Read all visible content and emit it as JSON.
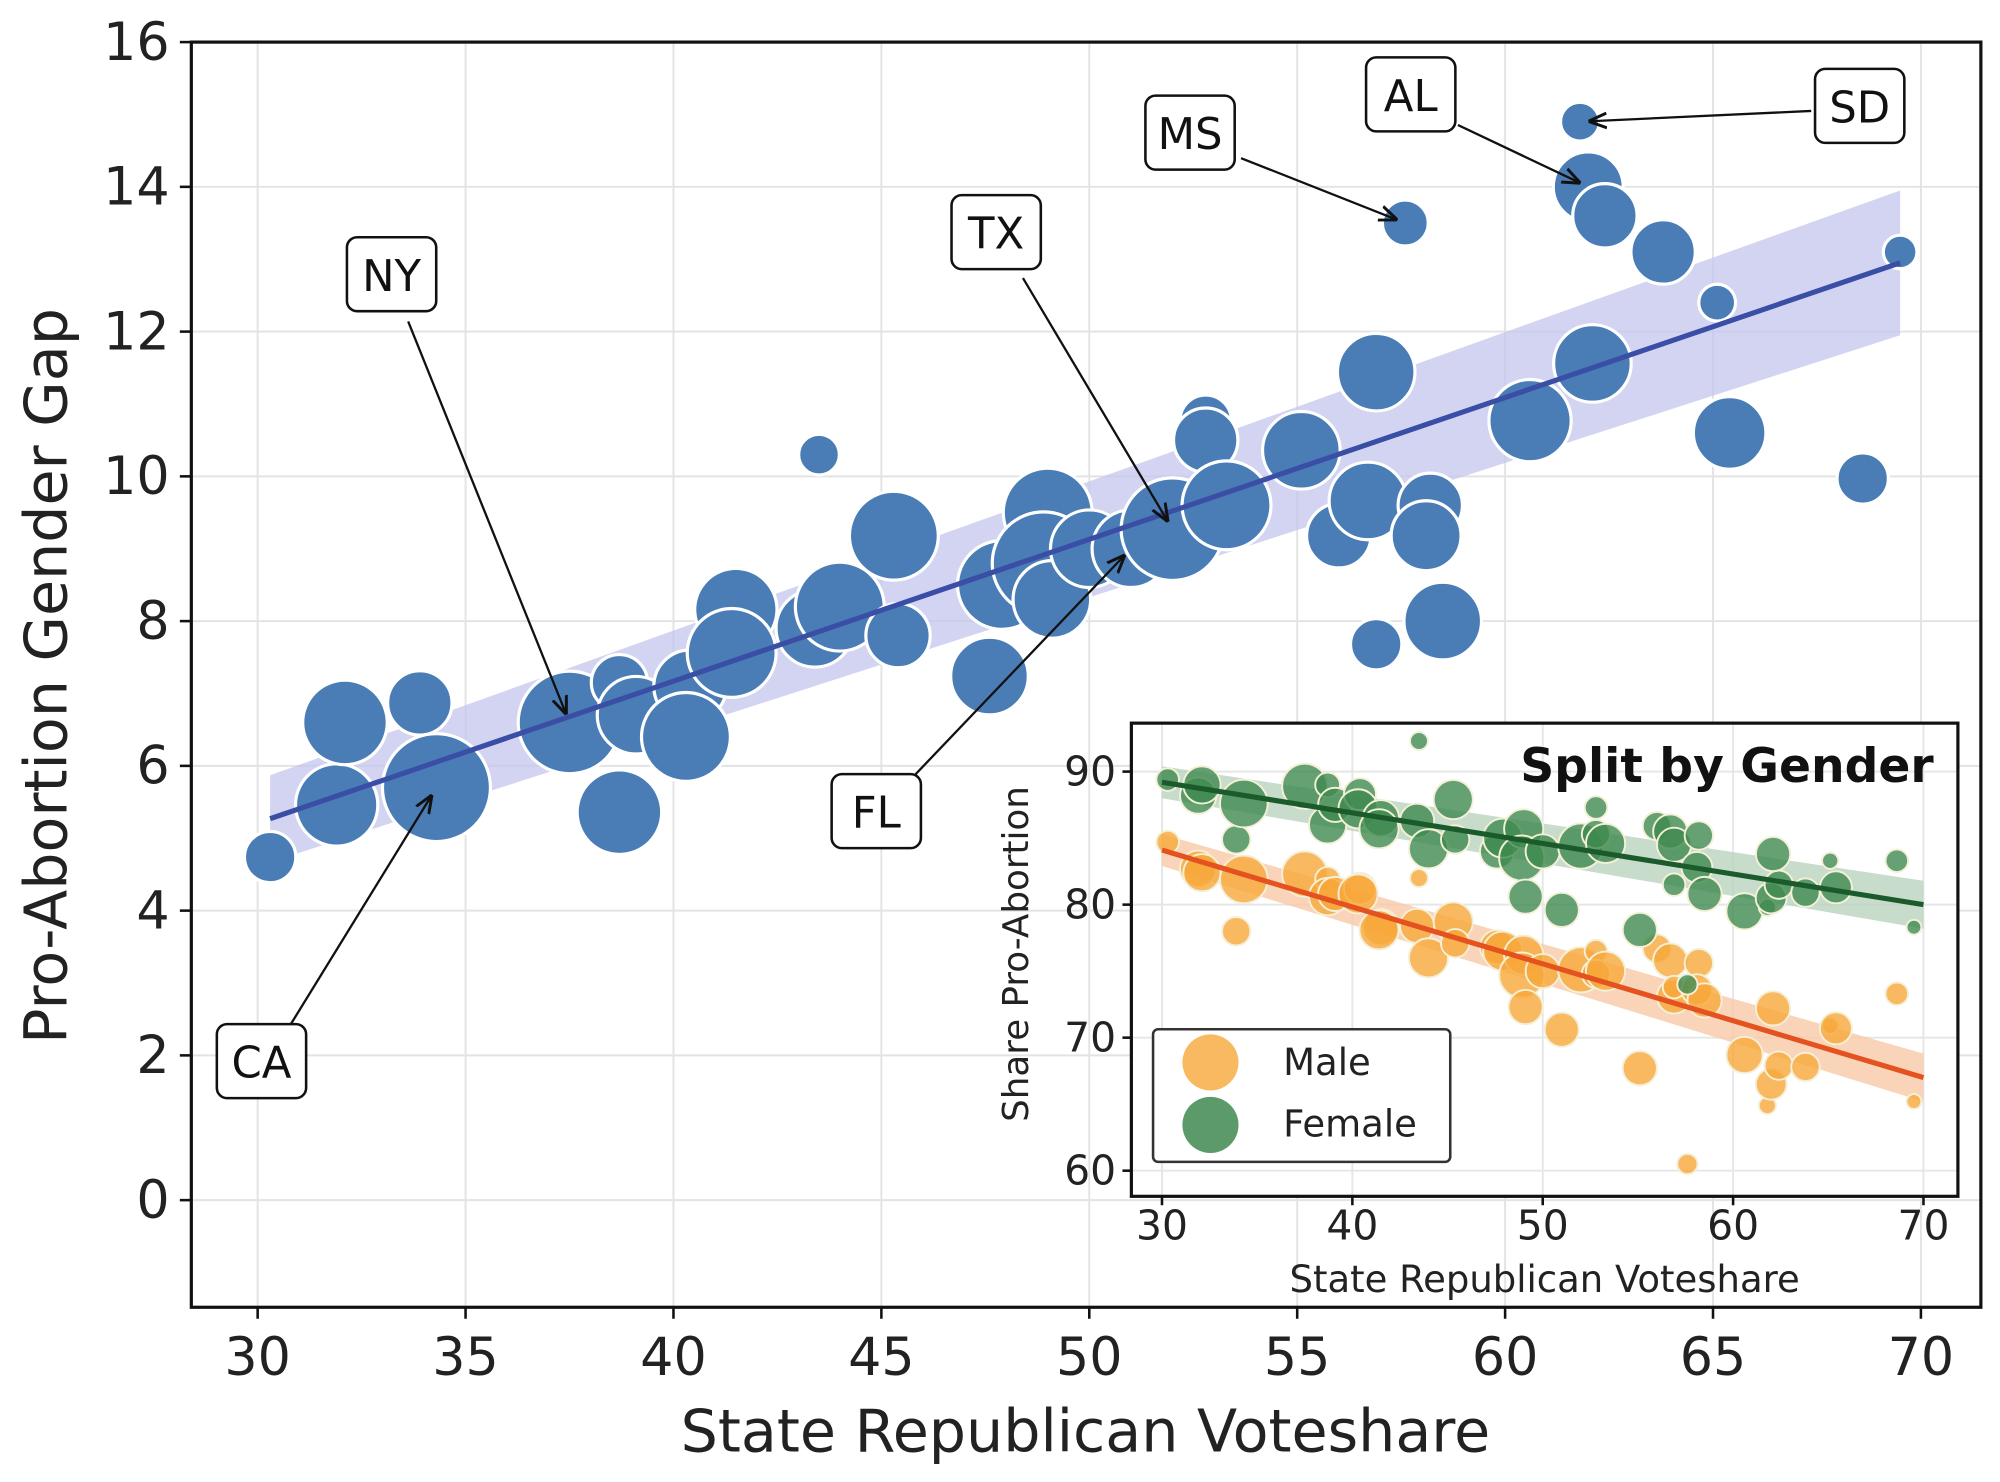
{
  "colors": {
    "main_points": "#4a7db5",
    "main_line": "#3b4ea6",
    "main_band": "#c3c6ee",
    "female": "#3f8a4f",
    "female_line": "#1b5a2b",
    "male": "#f8a73a",
    "male_line": "#e3521f"
  },
  "chart_data": [
    {
      "type": "scatter",
      "title": "",
      "xlabel": "State Republican Voteshare",
      "ylabel": "Pro-Abortion Gender Gap",
      "xlim": [
        28.5,
        71.5
      ],
      "ylim": [
        -1.5,
        16.0
      ],
      "xticks": [
        "30",
        "35",
        "40",
        "45",
        "50",
        "55",
        "60",
        "65",
        "70"
      ],
      "yticks": [
        "0",
        "2",
        "4",
        "6",
        "8",
        "10",
        "12",
        "14",
        "16"
      ],
      "grid": true,
      "regression": {
        "x": [
          30.3,
          69.5
        ],
        "y": [
          5.27,
          12.95
        ],
        "ci_halfwidth": [
          0.6,
          1.0
        ]
      },
      "points": [
        {
          "x": 30.3,
          "y": 4.74,
          "w": 0.35
        },
        {
          "x": 31.9,
          "y": 5.46,
          "w": 0.9
        },
        {
          "x": 32.1,
          "y": 6.6,
          "w": 0.95
        },
        {
          "x": 33.9,
          "y": 6.87,
          "w": 0.55
        },
        {
          "x": 34.3,
          "y": 5.7,
          "w": 1.55
        },
        {
          "x": 37.5,
          "y": 6.6,
          "w": 1.4
        },
        {
          "x": 38.7,
          "y": 7.15,
          "w": 0.42
        },
        {
          "x": 38.7,
          "y": 5.36,
          "w": 0.95
        },
        {
          "x": 39.1,
          "y": 6.7,
          "w": 0.8
        },
        {
          "x": 40.4,
          "y": 7.1,
          "w": 0.7
        },
        {
          "x": 40.3,
          "y": 6.4,
          "w": 1.05
        },
        {
          "x": 41.5,
          "y": 8.16,
          "w": 0.9
        },
        {
          "x": 41.4,
          "y": 7.56,
          "w": 1.05
        },
        {
          "x": 43.5,
          "y": 10.3,
          "w": 0.22
        },
        {
          "x": 43.4,
          "y": 7.9,
          "w": 0.8
        },
        {
          "x": 44.0,
          "y": 8.2,
          "w": 1.05
        },
        {
          "x": 45.3,
          "y": 9.18,
          "w": 1.05
        },
        {
          "x": 45.4,
          "y": 7.8,
          "w": 0.55
        },
        {
          "x": 47.6,
          "y": 7.24,
          "w": 0.8
        },
        {
          "x": 47.9,
          "y": 8.5,
          "w": 1.05
        },
        {
          "x": 49.0,
          "y": 9.5,
          "w": 1.05
        },
        {
          "x": 48.9,
          "y": 8.8,
          "w": 1.4
        },
        {
          "x": 49.1,
          "y": 8.3,
          "w": 0.8
        },
        {
          "x": 50.0,
          "y": 9.0,
          "w": 0.8
        },
        {
          "x": 51.0,
          "y": 9.0,
          "w": 0.8
        },
        {
          "x": 52.0,
          "y": 9.27,
          "w": 1.4
        },
        {
          "x": 52.8,
          "y": 10.77,
          "w": 0.35
        },
        {
          "x": 52.8,
          "y": 10.5,
          "w": 0.55
        },
        {
          "x": 53.3,
          "y": 9.6,
          "w": 1.05
        },
        {
          "x": 55.1,
          "y": 10.36,
          "w": 0.8
        },
        {
          "x": 56.0,
          "y": 9.18,
          "w": 0.55
        },
        {
          "x": 56.7,
          "y": 9.66,
          "w": 0.8
        },
        {
          "x": 56.9,
          "y": 11.44,
          "w": 0.8
        },
        {
          "x": 56.9,
          "y": 7.68,
          "w": 0.35
        },
        {
          "x": 57.6,
          "y": 13.5,
          "w": 0.28
        },
        {
          "x": 58.2,
          "y": 9.6,
          "w": 0.55
        },
        {
          "x": 58.1,
          "y": 9.18,
          "w": 0.65
        },
        {
          "x": 58.5,
          "y": 8.0,
          "w": 0.8
        },
        {
          "x": 60.6,
          "y": 10.77,
          "w": 0.9
        },
        {
          "x": 61.8,
          "y": 14.9,
          "w": 0.2
        },
        {
          "x": 62.0,
          "y": 14.0,
          "w": 0.65
        },
        {
          "x": 62.4,
          "y": 13.6,
          "w": 0.55
        },
        {
          "x": 62.1,
          "y": 11.56,
          "w": 0.8
        },
        {
          "x": 63.8,
          "y": 13.1,
          "w": 0.55
        },
        {
          "x": 65.1,
          "y": 12.4,
          "w": 0.18
        },
        {
          "x": 65.4,
          "y": 10.6,
          "w": 0.7
        },
        {
          "x": 68.6,
          "y": 9.97,
          "w": 0.35
        },
        {
          "x": 69.5,
          "y": 13.1,
          "w": 0.15
        }
      ],
      "annotations": [
        {
          "label": "CA",
          "x": 34.3,
          "y": 5.7
        },
        {
          "label": "NY",
          "x": 37.5,
          "y": 6.6
        },
        {
          "label": "TX",
          "x": 52.0,
          "y": 9.27
        },
        {
          "label": "FL",
          "x": 51.0,
          "y": 9.0
        },
        {
          "label": "MS",
          "x": 57.6,
          "y": 13.5
        },
        {
          "label": "AL",
          "x": 62.0,
          "y": 14.0
        },
        {
          "label": "SD",
          "x": 61.8,
          "y": 14.9
        }
      ]
    },
    {
      "type": "scatter",
      "title": "Split by Gender",
      "xlabel": "State Republican Voteshare",
      "ylabel": "Share Pro-Abortion",
      "xlim": [
        28.4,
        71.8
      ],
      "ylim": [
        56.8,
        93.6
      ],
      "xticks": [
        "30",
        "40",
        "50",
        "60",
        "70"
      ],
      "yticks": [
        "60",
        "70",
        "80",
        "90"
      ],
      "grid": true,
      "legend": {
        "position": "lower-left",
        "entries": [
          "Male",
          "Female"
        ]
      },
      "series": [
        {
          "name": "Male",
          "regression": {
            "x": [
              30,
              70
            ],
            "y": [
              84.1,
              67.0
            ]
          },
          "x": [
            30.3,
            31.9,
            32.1,
            33.9,
            34.3,
            37.5,
            38.7,
            38.7,
            39.1,
            40.4,
            40.3,
            41.5,
            41.4,
            43.5,
            43.4,
            44.0,
            45.3,
            45.4,
            47.6,
            47.9,
            49.0,
            48.9,
            49.1,
            50.0,
            51.0,
            52.0,
            52.8,
            52.8,
            53.3,
            55.1,
            56.0,
            56.7,
            56.9,
            56.9,
            57.6,
            58.2,
            58.1,
            58.5,
            60.6,
            61.8,
            62.0,
            62.4,
            62.1,
            63.8,
            65.1,
            65.4,
            68.6,
            69.5
          ],
          "y": [
            84.7,
            82.7,
            82.4,
            78.0,
            81.9,
            82.3,
            81.9,
            80.6,
            80.8,
            81.2,
            80.8,
            78.3,
            78.1,
            82.0,
            78.4,
            76.0,
            78.7,
            77.1,
            76.8,
            76.5,
            76.2,
            74.7,
            72.3,
            75.0,
            70.6,
            75.1,
            76.5,
            74.8,
            75.0,
            67.7,
            76.7,
            75.8,
            73.1,
            73.8,
            60.5,
            75.6,
            73.6,
            72.8,
            68.7,
            64.9,
            66.5,
            67.9,
            72.2,
            67.8,
            70.9,
            70.7,
            73.3,
            65.2
          ]
        },
        {
          "name": "Female",
          "regression": {
            "x": [
              30,
              70
            ],
            "y": [
              89.2,
              80.0
            ]
          },
          "x": [
            30.3,
            31.9,
            32.1,
            33.9,
            34.3,
            37.5,
            38.7,
            38.7,
            39.1,
            40.4,
            40.3,
            41.5,
            41.4,
            43.5,
            43.4,
            44.0,
            45.3,
            45.4,
            47.6,
            47.9,
            49.0,
            48.9,
            49.1,
            50.0,
            51.0,
            52.0,
            52.8,
            52.8,
            53.3,
            55.1,
            56.0,
            56.7,
            56.9,
            56.9,
            57.6,
            58.2,
            58.1,
            58.5,
            60.6,
            61.8,
            62.0,
            62.4,
            62.1,
            63.8,
            65.1,
            65.4,
            68.6,
            69.5
          ],
          "y": [
            89.4,
            88.2,
            89.0,
            84.9,
            87.6,
            88.9,
            89.0,
            86.0,
            87.5,
            88.3,
            87.2,
            86.5,
            85.7,
            92.3,
            86.3,
            84.2,
            87.9,
            84.9,
            84.0,
            85.0,
            85.7,
            83.5,
            80.6,
            84.0,
            79.6,
            84.4,
            87.3,
            85.3,
            84.6,
            78.1,
            85.9,
            85.5,
            84.5,
            81.5,
            74.0,
            85.2,
            82.8,
            80.8,
            79.5,
            79.8,
            80.5,
            81.5,
            83.8,
            80.9,
            83.3,
            81.3,
            83.3,
            78.3
          ]
        }
      ]
    }
  ]
}
